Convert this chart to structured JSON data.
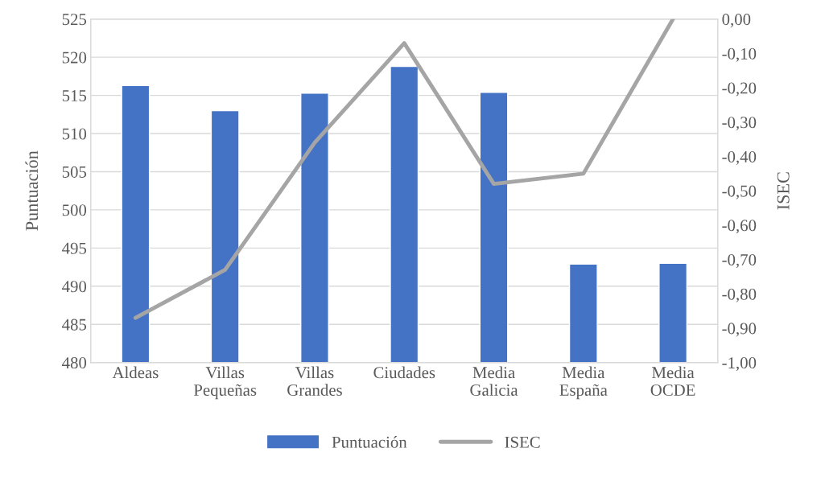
{
  "chart_data": {
    "type": "bar",
    "categories": [
      "Aldeas",
      "Villas\nPequeñas",
      "Villas\nGrandes",
      "Ciudades",
      "Media\nGalicia",
      "Media\nEspaña",
      "Media\nOCDE"
    ],
    "series": [
      {
        "name": "Puntuación",
        "color": "#4472c4",
        "values": [
          516.3,
          513.0,
          515.3,
          518.8,
          515.4,
          492.9,
          493.0
        ]
      },
      {
        "name": "ISEC",
        "type": "line",
        "axis": "y2",
        "color": "#a5a5a5",
        "values": [
          -0.87,
          -0.73,
          -0.36,
          -0.07,
          -0.48,
          -0.45,
          0.0
        ]
      }
    ],
    "ylabel": "Puntuación",
    "y2label": "ISEC",
    "ylim": [
      480,
      525
    ],
    "yticks": [
      480,
      485,
      490,
      495,
      500,
      505,
      510,
      515,
      520,
      525
    ],
    "y2lim": [
      -1.0,
      0.0
    ],
    "y2ticks": [
      {
        "value": -1.0,
        "label": "-1,00"
      },
      {
        "value": -0.9,
        "label": "-0,90"
      },
      {
        "value": -0.8,
        "label": "-0,80"
      },
      {
        "value": -0.7,
        "label": "-0,70"
      },
      {
        "value": -0.6,
        "label": "-0,60"
      },
      {
        "value": -0.5,
        "label": "-0,50"
      },
      {
        "value": -0.4,
        "label": "-0,40"
      },
      {
        "value": -0.3,
        "label": "-0,30"
      },
      {
        "value": -0.2,
        "label": "-0,20"
      },
      {
        "value": -0.1,
        "label": "-0,10"
      },
      {
        "value": 0.0,
        "label": "0,00"
      }
    ],
    "grid": "y",
    "legend": "bottom",
    "marker": "none",
    "line_style": "solid"
  }
}
